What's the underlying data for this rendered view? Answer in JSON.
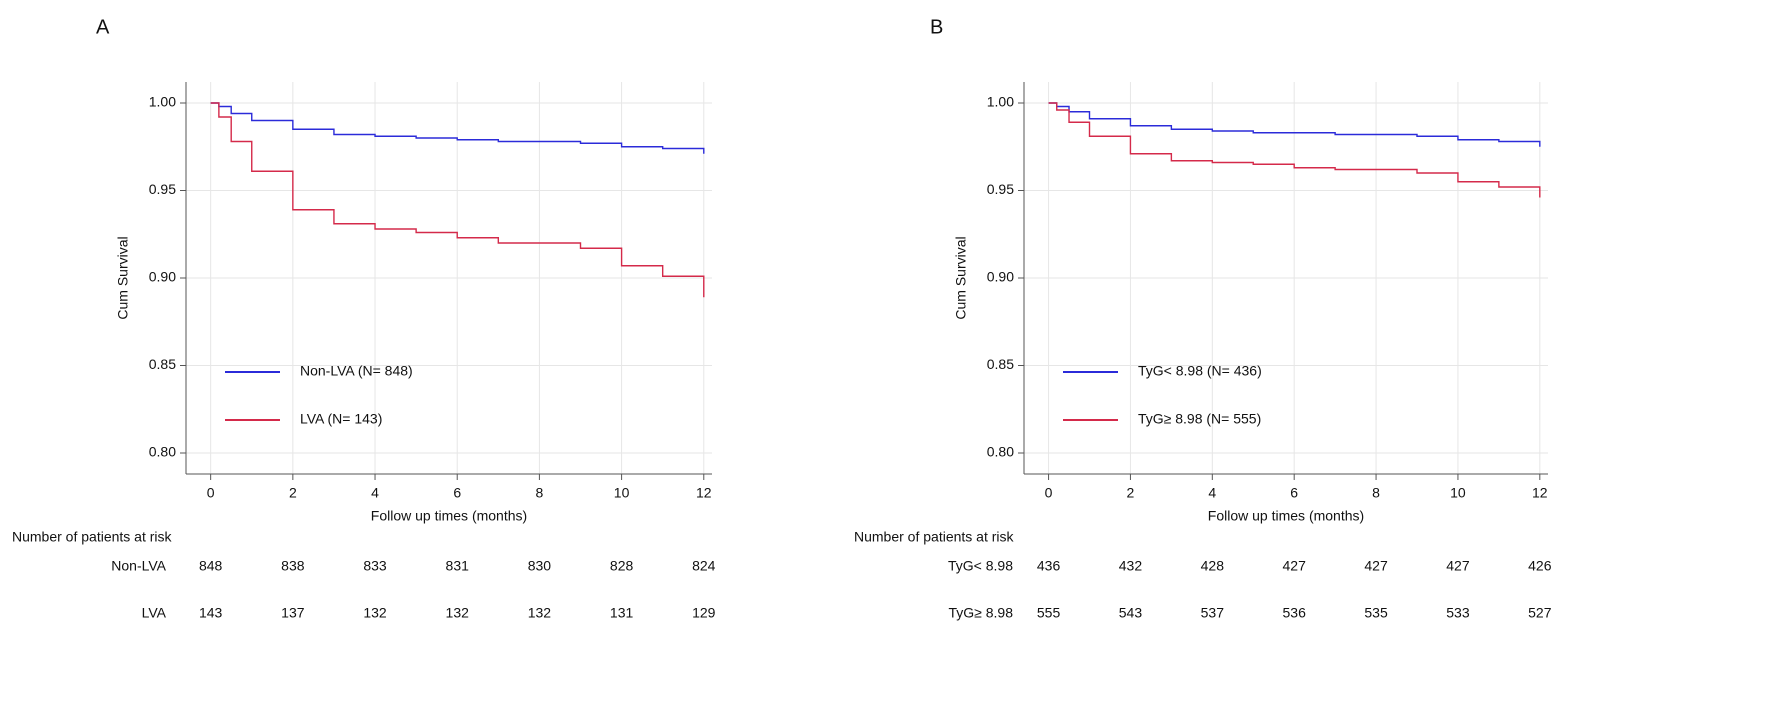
{
  "panels": [
    {
      "panel_label": "A",
      "legend": [
        {
          "label": "Non-LVA (N= 848)",
          "color": "#2b2bd9"
        },
        {
          "label": "LVA (N= 143)",
          "color": "#d42a4a"
        }
      ],
      "risk_table": {
        "title": "Number of patients at risk",
        "rows": [
          {
            "label": "Non-LVA",
            "values": [
              "848",
              "838",
              "833",
              "831",
              "830",
              "828",
              "824"
            ]
          },
          {
            "label": "LVA",
            "values": [
              "143",
              "137",
              "132",
              "132",
              "132",
              "131",
              "129"
            ]
          }
        ]
      }
    },
    {
      "panel_label": "B",
      "legend": [
        {
          "label": "TyG< 8.98 (N= 436)",
          "color": "#2b2bd9"
        },
        {
          "label": "TyG≥ 8.98 (N= 555)",
          "color": "#d42a4a"
        }
      ],
      "risk_table": {
        "title": "Number of patients at risk",
        "rows": [
          {
            "label": "TyG< 8.98",
            "values": [
              "436",
              "432",
              "428",
              "427",
              "427",
              "427",
              "426"
            ]
          },
          {
            "label": "TyG≥ 8.98",
            "values": [
              "555",
              "543",
              "537",
              "536",
              "535",
              "533",
              "527"
            ]
          }
        ]
      }
    }
  ],
  "chart_data": [
    {
      "type": "line",
      "subtype": "kaplan-meier step",
      "title": "A",
      "xlabel": "Follow up times (months)",
      "ylabel": "Cum Survival",
      "xlim": [
        -0.6,
        12.2
      ],
      "ylim": [
        0.788,
        1.012
      ],
      "xticks": [
        0,
        2,
        4,
        6,
        8,
        10,
        12
      ],
      "yticks": [
        0.8,
        0.85,
        0.9,
        0.95,
        1.0
      ],
      "ytick_labels": [
        "0.80",
        "0.85",
        "0.90",
        "0.95",
        "1.00"
      ],
      "grid": true,
      "legend_position": "lower-left",
      "series": [
        {
          "name": "Non-LVA (N= 848)",
          "color": "#2b2bd9",
          "x": [
            0,
            0.2,
            0.5,
            1,
            2,
            3,
            4,
            5,
            6,
            7,
            9,
            10,
            11,
            12
          ],
          "y": [
            1.0,
            0.998,
            0.994,
            0.99,
            0.985,
            0.982,
            0.981,
            0.98,
            0.979,
            0.978,
            0.977,
            0.975,
            0.974,
            0.971
          ]
        },
        {
          "name": "LVA (N= 143)",
          "color": "#d42a4a",
          "x": [
            0,
            0.2,
            0.5,
            1,
            2,
            3,
            4,
            5,
            6,
            7,
            9,
            10,
            11,
            12
          ],
          "y": [
            1.0,
            0.992,
            0.978,
            0.961,
            0.939,
            0.931,
            0.928,
            0.926,
            0.923,
            0.92,
            0.917,
            0.907,
            0.901,
            0.889
          ]
        }
      ]
    },
    {
      "type": "line",
      "subtype": "kaplan-meier step",
      "title": "B",
      "xlabel": "Follow up times (months)",
      "ylabel": "Cum Survival",
      "xlim": [
        -0.6,
        12.2
      ],
      "ylim": [
        0.788,
        1.012
      ],
      "xticks": [
        0,
        2,
        4,
        6,
        8,
        10,
        12
      ],
      "yticks": [
        0.8,
        0.85,
        0.9,
        0.95,
        1.0
      ],
      "ytick_labels": [
        "0.80",
        "0.85",
        "0.90",
        "0.95",
        "1.00"
      ],
      "grid": true,
      "legend_position": "lower-left",
      "series": [
        {
          "name": "TyG< 8.98 (N= 436)",
          "color": "#2b2bd9",
          "x": [
            0,
            0.2,
            0.5,
            1,
            2,
            3,
            4,
            5,
            6,
            7,
            9,
            10,
            11,
            12
          ],
          "y": [
            1.0,
            0.998,
            0.995,
            0.991,
            0.987,
            0.985,
            0.984,
            0.983,
            0.983,
            0.982,
            0.981,
            0.979,
            0.978,
            0.975
          ]
        },
        {
          "name": "TyG≥ 8.98 (N= 555)",
          "color": "#d42a4a",
          "x": [
            0,
            0.2,
            0.5,
            1,
            2,
            3,
            4,
            5,
            6,
            7,
            9,
            10,
            11,
            12
          ],
          "y": [
            1.0,
            0.996,
            0.989,
            0.981,
            0.971,
            0.967,
            0.966,
            0.965,
            0.963,
            0.962,
            0.96,
            0.955,
            0.952,
            0.946
          ]
        }
      ]
    }
  ]
}
